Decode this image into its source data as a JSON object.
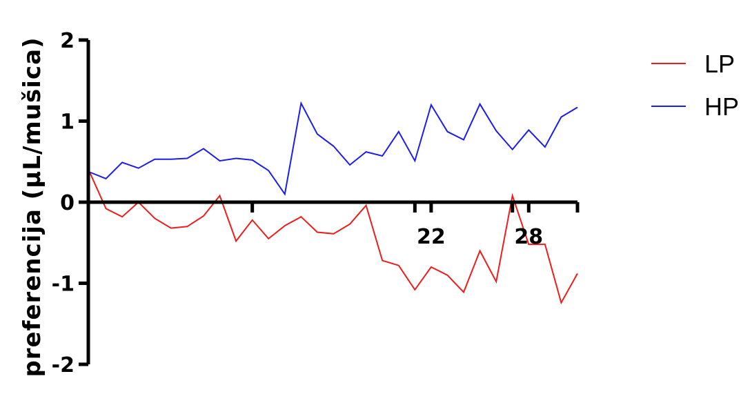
{
  "chart_data": {
    "type": "line",
    "ylabel": "preferencija (µL/mušica)",
    "xlabel": "",
    "title": "",
    "ylim": [
      -2,
      2
    ],
    "yticks": [
      2,
      1,
      0,
      -1,
      -2
    ],
    "xlim": [
      1,
      31
    ],
    "xticks_labeled": [
      {
        "value": 22,
        "label": "22"
      },
      {
        "value": 28,
        "label": "28"
      }
    ],
    "xticks_unlabeled": [
      11,
      21,
      27,
      31
    ],
    "legend_position": "top-right",
    "series": [
      {
        "name": "LP",
        "color": "#ee1c1c",
        "x": [
          1,
          2,
          3,
          4,
          5,
          6,
          7,
          8,
          9,
          10,
          11,
          12,
          13,
          14,
          15,
          16,
          17,
          18,
          19,
          20,
          21,
          22,
          23,
          24,
          25,
          26,
          27,
          28,
          29,
          30,
          31
        ],
        "values": [
          0.37,
          -0.08,
          -0.18,
          0.0,
          -0.2,
          -0.32,
          -0.3,
          -0.17,
          0.08,
          -0.48,
          -0.22,
          -0.45,
          -0.29,
          -0.18,
          -0.37,
          -0.39,
          -0.27,
          -0.04,
          -0.72,
          -0.78,
          -1.08,
          -0.8,
          -0.9,
          -1.11,
          -0.6,
          -0.98,
          0.08,
          -0.52,
          -0.52,
          -1.24,
          -0.88
        ]
      },
      {
        "name": "HP",
        "color": "#1c1cee",
        "x": [
          1,
          2,
          3,
          4,
          5,
          6,
          7,
          8,
          9,
          10,
          11,
          12,
          13,
          14,
          15,
          16,
          17,
          18,
          19,
          20,
          21,
          22,
          23,
          24,
          25,
          26,
          27,
          28,
          29,
          30,
          31
        ],
        "values": [
          0.37,
          0.29,
          0.49,
          0.42,
          0.53,
          0.53,
          0.54,
          0.66,
          0.51,
          0.54,
          0.52,
          0.39,
          0.1,
          1.22,
          0.84,
          0.69,
          0.46,
          0.62,
          0.57,
          0.87,
          0.51,
          1.2,
          0.87,
          0.77,
          1.21,
          0.88,
          0.65,
          0.89,
          0.68,
          1.05,
          1.17
        ]
      }
    ]
  }
}
